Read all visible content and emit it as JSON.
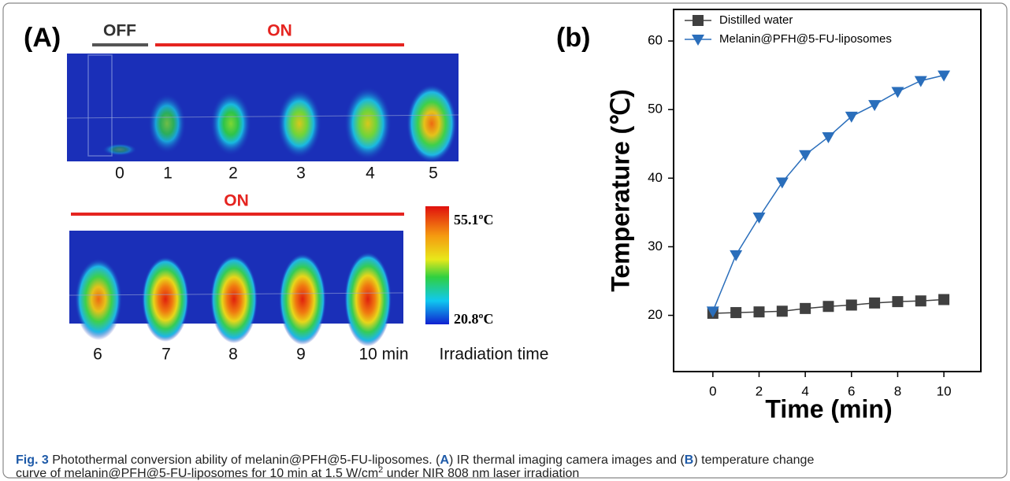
{
  "panel_a": {
    "label": "(A)",
    "off": "OFF",
    "on_top": "ON",
    "on_bottom": "ON",
    "times_top": [
      "0",
      "1",
      "2",
      "3",
      "4",
      "5"
    ],
    "times_bottom": [
      "6",
      "7",
      "8",
      "9",
      "10 min"
    ],
    "time_axis_label": "Irradiation time",
    "scale_max": "55.1ºC",
    "scale_min": "20.8ºC"
  },
  "panel_b": {
    "label": "(b)"
  },
  "chart_data": {
    "type": "line",
    "x_label": "Time (min)",
    "y_label": "Temperature (℃)",
    "x": [
      0,
      1,
      2,
      3,
      4,
      5,
      6,
      7,
      8,
      9,
      10
    ],
    "series": [
      {
        "name": "Distilled water",
        "color": "#404040",
        "marker": "square",
        "values": [
          20.3,
          20.4,
          20.5,
          20.6,
          21.0,
          21.3,
          21.5,
          21.8,
          22.0,
          22.1,
          22.3
        ]
      },
      {
        "name": "Melanin@PFH@5-FU-liposomes",
        "color": "#2a6ebb",
        "marker": "triangle-down",
        "values": [
          20.6,
          28.8,
          34.3,
          39.4,
          43.4,
          46.0,
          49.0,
          50.7,
          52.6,
          54.2,
          55.0
        ]
      }
    ],
    "xlim": [
      -1.7,
      11.6
    ],
    "ylim": [
      11.8,
      64.6
    ],
    "xticks": [
      0,
      2,
      4,
      6,
      8,
      10
    ],
    "yticks": [
      20,
      30,
      40,
      50,
      60
    ],
    "legend": "upper left"
  },
  "caption": {
    "label": "Fig. 3",
    "text1": " Photothermal conversion ability of melanin@PFH@5-FU-liposomes. (",
    "panel_a": "A",
    "text2": ") IR thermal imaging camera images and (",
    "panel_b": "B",
    "text3": ") temperature change",
    "text4": "curve of melanin@PFH@5-FU-liposomes for 10 min at 1.5 W/cm",
    "superscript": "2",
    "text5": " under NIR 808 nm laser irradiation"
  }
}
